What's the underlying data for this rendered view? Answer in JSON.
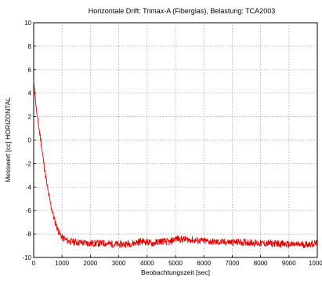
{
  "chart_data": {
    "type": "line",
    "title": "Horizontale Drift: Trimax-A (Fiberglas), Belastung: TCA2003",
    "xlabel": "Beobachtungszeit [sec]",
    "ylabel": "Messwert [cc] HORIZONTAL",
    "xlim": [
      0,
      10000
    ],
    "ylim": [
      -10,
      10
    ],
    "x_ticks": [
      0,
      1000,
      2000,
      3000,
      4000,
      5000,
      6000,
      7000,
      8000,
      9000,
      10000
    ],
    "y_ticks": [
      -10,
      -8,
      -6,
      -4,
      -2,
      0,
      2,
      4,
      6,
      8,
      10
    ],
    "grid": true,
    "series": [
      {
        "color": "#e00000",
        "x": [
          0,
          50,
          100,
          150,
          200,
          250,
          300,
          400,
          500,
          600,
          700,
          800,
          900,
          1000,
          1200,
          1500,
          2000,
          2500,
          3000,
          3500,
          3800,
          4000,
          4200,
          4500,
          4800,
          5000,
          5500,
          6000,
          6500,
          7000,
          7500,
          8000,
          8500,
          9000,
          9500,
          10000
        ],
        "y": [
          5.0,
          3.8,
          2.5,
          1.6,
          0.8,
          0.0,
          -1.0,
          -2.7,
          -4.3,
          -5.5,
          -6.5,
          -7.3,
          -7.9,
          -8.3,
          -8.6,
          -8.7,
          -8.8,
          -8.8,
          -8.9,
          -8.8,
          -8.6,
          -8.7,
          -8.8,
          -8.6,
          -8.7,
          -8.4,
          -8.5,
          -8.6,
          -8.7,
          -8.7,
          -8.7,
          -8.8,
          -8.8,
          -8.9,
          -8.9,
          -8.8
        ]
      }
    ]
  }
}
